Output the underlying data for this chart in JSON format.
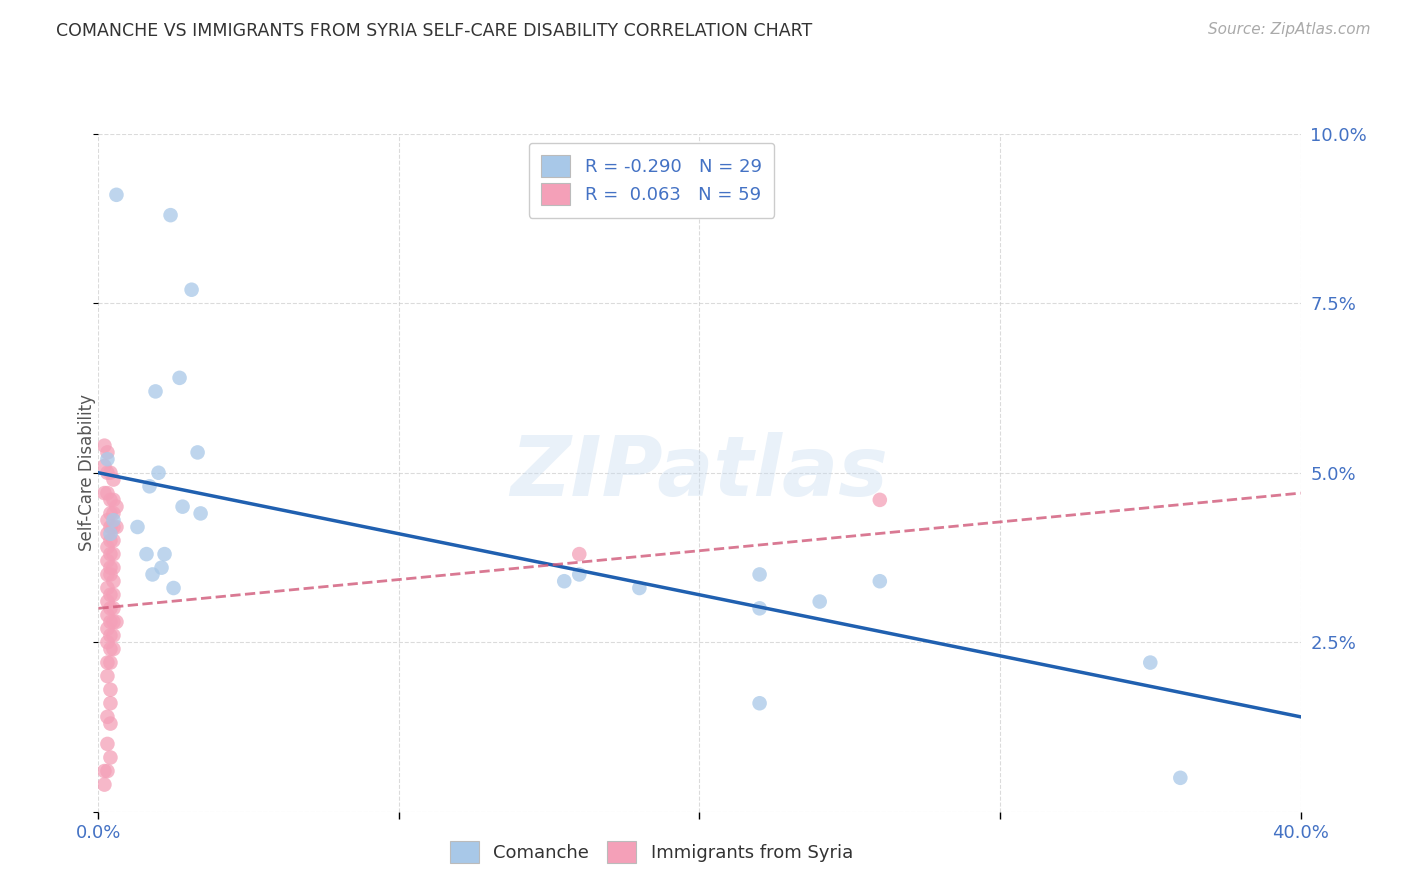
{
  "title": "COMANCHE VS IMMIGRANTS FROM SYRIA SELF-CARE DISABILITY CORRELATION CHART",
  "source": "Source: ZipAtlas.com",
  "ylabel": "Self-Care Disability",
  "xlim": [
    0.0,
    0.4
  ],
  "ylim": [
    0.0,
    0.1
  ],
  "r_comanche": -0.29,
  "n_comanche": 29,
  "r_syria": 0.063,
  "n_syria": 59,
  "comanche_color": "#a8c8e8",
  "syria_color": "#f4a0b8",
  "comanche_line_color": "#2060b0",
  "syria_line_color": "#d05878",
  "background_color": "#ffffff",
  "grid_color": "#cccccc",
  "watermark": "ZIPatlas",
  "axis_color": "#4472c4",
  "title_color": "#333333",
  "source_color": "#aaaaaa",
  "comanche_line_x0": 0.0,
  "comanche_line_y0": 0.05,
  "comanche_line_x1": 0.4,
  "comanche_line_y1": 0.014,
  "syria_line_x0": 0.0,
  "syria_line_y0": 0.03,
  "syria_line_x1": 0.4,
  "syria_line_y1": 0.047,
  "comanche_points": [
    [
      0.006,
      0.091
    ],
    [
      0.024,
      0.088
    ],
    [
      0.031,
      0.077
    ],
    [
      0.027,
      0.064
    ],
    [
      0.019,
      0.062
    ],
    [
      0.033,
      0.053
    ],
    [
      0.003,
      0.052
    ],
    [
      0.02,
      0.05
    ],
    [
      0.017,
      0.048
    ],
    [
      0.028,
      0.045
    ],
    [
      0.034,
      0.044
    ],
    [
      0.005,
      0.043
    ],
    [
      0.013,
      0.042
    ],
    [
      0.004,
      0.041
    ],
    [
      0.016,
      0.038
    ],
    [
      0.022,
      0.038
    ],
    [
      0.021,
      0.036
    ],
    [
      0.018,
      0.035
    ],
    [
      0.16,
      0.035
    ],
    [
      0.22,
      0.035
    ],
    [
      0.155,
      0.034
    ],
    [
      0.26,
      0.034
    ],
    [
      0.025,
      0.033
    ],
    [
      0.18,
      0.033
    ],
    [
      0.24,
      0.031
    ],
    [
      0.22,
      0.03
    ],
    [
      0.35,
      0.022
    ],
    [
      0.22,
      0.016
    ],
    [
      0.36,
      0.005
    ]
  ],
  "syria_points": [
    [
      0.002,
      0.054
    ],
    [
      0.003,
      0.053
    ],
    [
      0.002,
      0.051
    ],
    [
      0.003,
      0.05
    ],
    [
      0.004,
      0.05
    ],
    [
      0.005,
      0.049
    ],
    [
      0.002,
      0.047
    ],
    [
      0.003,
      0.047
    ],
    [
      0.004,
      0.046
    ],
    [
      0.005,
      0.046
    ],
    [
      0.006,
      0.045
    ],
    [
      0.004,
      0.044
    ],
    [
      0.005,
      0.044
    ],
    [
      0.003,
      0.043
    ],
    [
      0.004,
      0.042
    ],
    [
      0.005,
      0.042
    ],
    [
      0.006,
      0.042
    ],
    [
      0.003,
      0.041
    ],
    [
      0.004,
      0.04
    ],
    [
      0.005,
      0.04
    ],
    [
      0.003,
      0.039
    ],
    [
      0.004,
      0.038
    ],
    [
      0.005,
      0.038
    ],
    [
      0.003,
      0.037
    ],
    [
      0.004,
      0.036
    ],
    [
      0.005,
      0.036
    ],
    [
      0.003,
      0.035
    ],
    [
      0.004,
      0.035
    ],
    [
      0.005,
      0.034
    ],
    [
      0.003,
      0.033
    ],
    [
      0.004,
      0.032
    ],
    [
      0.005,
      0.032
    ],
    [
      0.003,
      0.031
    ],
    [
      0.004,
      0.03
    ],
    [
      0.005,
      0.03
    ],
    [
      0.003,
      0.029
    ],
    [
      0.004,
      0.028
    ],
    [
      0.005,
      0.028
    ],
    [
      0.006,
      0.028
    ],
    [
      0.003,
      0.027
    ],
    [
      0.004,
      0.026
    ],
    [
      0.005,
      0.026
    ],
    [
      0.003,
      0.025
    ],
    [
      0.004,
      0.024
    ],
    [
      0.005,
      0.024
    ],
    [
      0.003,
      0.022
    ],
    [
      0.004,
      0.022
    ],
    [
      0.003,
      0.02
    ],
    [
      0.004,
      0.018
    ],
    [
      0.004,
      0.016
    ],
    [
      0.003,
      0.014
    ],
    [
      0.004,
      0.013
    ],
    [
      0.003,
      0.01
    ],
    [
      0.004,
      0.008
    ],
    [
      0.003,
      0.006
    ],
    [
      0.002,
      0.006
    ],
    [
      0.002,
      0.004
    ],
    [
      0.26,
      0.046
    ],
    [
      0.16,
      0.038
    ]
  ]
}
